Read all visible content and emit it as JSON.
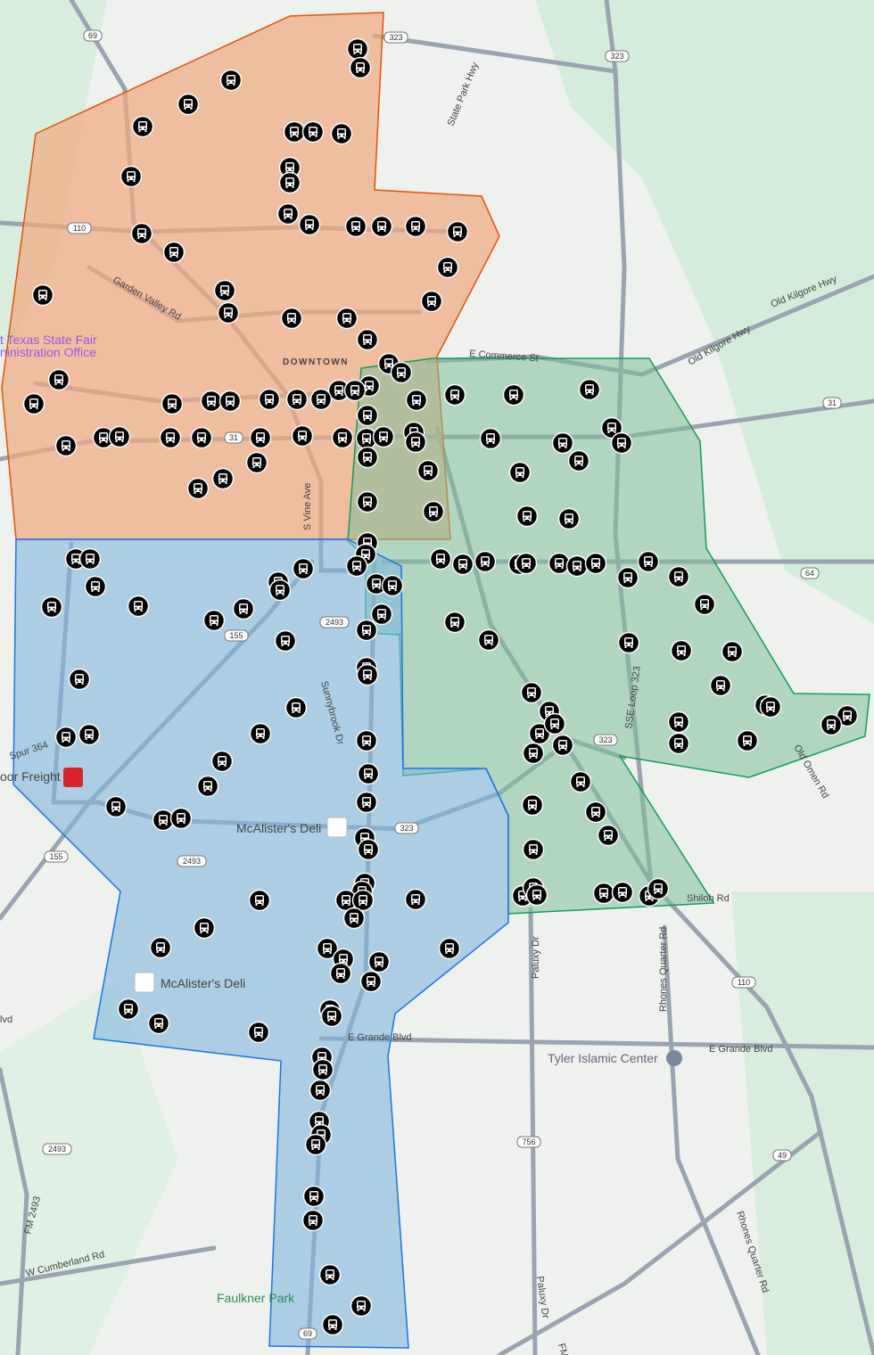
{
  "map": {
    "zones": [
      {
        "id": "northwest",
        "fill": "#f0a87e",
        "stroke": "#e65100"
      },
      {
        "id": "east",
        "fill": "#7fbf9a",
        "stroke": "#0f9d58"
      },
      {
        "id": "south",
        "fill": "#7fb8e0",
        "stroke": "#1a73e8"
      }
    ],
    "marker_icon": "bus-stop-icon",
    "labels": {
      "downtown": "DOWNTOWN",
      "e_commerce": "E Commerce St",
      "state_park_hwy": "State Park Hwy",
      "old_kilgore_hwy": "Old Kilgore Hwy",
      "old_kilgore_hwy2": "Old Kilgore Hwy",
      "garden_valley": "Garden Valley Rd",
      "s_vine": "S Vine Ave",
      "sunnybrook": "Sunnybrook Dr",
      "spur364": "Spur 364",
      "loop323": "SSE Loop 323",
      "old_omen": "Old Omen Rd",
      "shiloh": "Shiloh Rd",
      "paluxy": "Paluxy Dr",
      "paluxy2": "Paluxy Dr",
      "rhones": "Rhones Quarter Rd",
      "rhones2": "Rhones Quarter Rd",
      "e_grande": "E Grande Blvd",
      "e_grande2": "E Grande Blvd",
      "w_cumberland": "W Cumberland Rd",
      "fm2493": "FM 2493",
      "blvd": "lvd",
      "fm": "FM"
    },
    "pois": {
      "state_fair": "t Texas State Fair",
      "state_fair2": "ninistration Office",
      "freight": "oor Freight",
      "mcalisters1": "McAlister's Deli",
      "mcalisters2": "McAlister's Deli",
      "islamic": "Tyler Islamic Center",
      "faulkner": "Faulkner Park"
    },
    "shields": {
      "s69": "69",
      "s323a": "323",
      "s323b": "323",
      "s110a": "110",
      "s31a": "31",
      "s31b": "31",
      "s64": "64",
      "s155a": "155",
      "s155b": "155",
      "s2493a": "2493",
      "s2493b": "2493",
      "s2493c": "2493",
      "s323c": "323",
      "s323d": "323",
      "s110b": "110",
      "s756": "756",
      "s49": "49",
      "s69b": "69"
    }
  }
}
